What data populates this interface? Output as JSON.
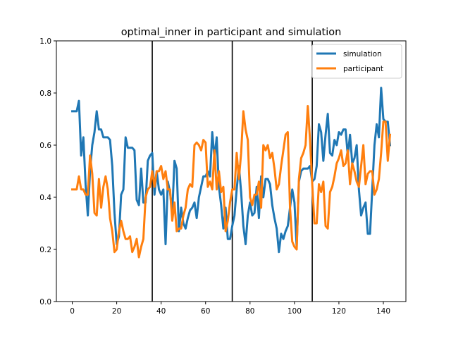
{
  "chart_data": {
    "type": "line",
    "title": "optimal_inner in participant and simulation",
    "xlabel": "",
    "ylabel": "",
    "xlim": [
      -7.15,
      150.15
    ],
    "ylim": [
      0.0,
      1.0
    ],
    "xticks": [
      0,
      20,
      40,
      60,
      80,
      100,
      120,
      140
    ],
    "yticks": [
      0.0,
      0.2,
      0.4,
      0.6,
      0.8,
      1.0
    ],
    "ytick_labels": [
      "0.0",
      "0.2",
      "0.4",
      "0.6",
      "0.8",
      "1.0"
    ],
    "grid": false,
    "legend_position": "top-right",
    "vlines": [
      36,
      72,
      108
    ],
    "vline_color": "#000000",
    "series": [
      {
        "name": "simulation",
        "color": "#1f77b4",
        "values": [
          0.73,
          0.73,
          0.73,
          0.77,
          0.56,
          0.63,
          0.45,
          0.33,
          0.5,
          0.6,
          0.65,
          0.73,
          0.66,
          0.66,
          0.63,
          0.63,
          0.63,
          0.62,
          0.52,
          0.34,
          0.22,
          0.25,
          0.41,
          0.43,
          0.63,
          0.59,
          0.59,
          0.59,
          0.58,
          0.39,
          0.37,
          0.51,
          0.38,
          0.38,
          0.54,
          0.56,
          0.57,
          0.41,
          0.5,
          0.43,
          0.41,
          0.43,
          0.22,
          0.46,
          0.42,
          0.34,
          0.54,
          0.51,
          0.27,
          0.36,
          0.3,
          0.28,
          0.32,
          0.35,
          0.36,
          0.38,
          0.32,
          0.4,
          0.44,
          0.48,
          0.48,
          0.5,
          0.48,
          0.65,
          0.55,
          0.63,
          0.44,
          0.37,
          0.28,
          0.36,
          0.24,
          0.24,
          0.29,
          0.33,
          0.43,
          0.52,
          0.42,
          0.29,
          0.22,
          0.33,
          0.38,
          0.33,
          0.34,
          0.44,
          0.32,
          0.48,
          0.4,
          0.47,
          0.47,
          0.45,
          0.37,
          0.32,
          0.28,
          0.19,
          0.26,
          0.24,
          0.27,
          0.29,
          0.36,
          0.43,
          0.38,
          0.21,
          0.46,
          0.5,
          0.51,
          0.51,
          0.51,
          0.52,
          0.46,
          0.47,
          0.52,
          0.68,
          0.65,
          0.54,
          0.64,
          0.72,
          0.57,
          0.56,
          0.62,
          0.6,
          0.65,
          0.64,
          0.66,
          0.66,
          0.56,
          0.64,
          0.53,
          0.55,
          0.6,
          0.43,
          0.33,
          0.36,
          0.38,
          0.26,
          0.26,
          0.43,
          0.6,
          0.68,
          0.63,
          0.82,
          0.7,
          0.69,
          0.69,
          0.6
        ]
      },
      {
        "name": "participant",
        "color": "#ff7f0e",
        "values": [
          0.43,
          0.43,
          0.43,
          0.48,
          0.43,
          0.43,
          0.41,
          0.41,
          0.56,
          0.49,
          0.34,
          0.33,
          0.47,
          0.36,
          0.44,
          0.48,
          0.43,
          0.32,
          0.27,
          0.19,
          0.2,
          0.27,
          0.31,
          0.27,
          0.24,
          0.24,
          0.25,
          0.19,
          0.21,
          0.24,
          0.17,
          0.21,
          0.24,
          0.4,
          0.43,
          0.44,
          0.5,
          0.44,
          0.5,
          0.5,
          0.52,
          0.47,
          0.5,
          0.43,
          0.43,
          0.31,
          0.38,
          0.27,
          0.28,
          0.28,
          0.33,
          0.36,
          0.43,
          0.45,
          0.44,
          0.6,
          0.61,
          0.6,
          0.58,
          0.62,
          0.61,
          0.44,
          0.46,
          0.43,
          0.58,
          0.43,
          0.5,
          0.42,
          0.44,
          0.27,
          0.31,
          0.38,
          0.43,
          0.43,
          0.57,
          0.47,
          0.57,
          0.73,
          0.66,
          0.62,
          0.4,
          0.37,
          0.41,
          0.41,
          0.46,
          0.36,
          0.6,
          0.58,
          0.6,
          0.55,
          0.57,
          0.51,
          0.43,
          0.45,
          0.52,
          0.58,
          0.64,
          0.65,
          0.36,
          0.23,
          0.21,
          0.2,
          0.47,
          0.55,
          0.57,
          0.6,
          0.75,
          0.62,
          0.45,
          0.3,
          0.3,
          0.45,
          0.42,
          0.46,
          0.29,
          0.28,
          0.42,
          0.44,
          0.48,
          0.53,
          0.55,
          0.58,
          0.52,
          0.53,
          0.58,
          0.45,
          0.53,
          0.5,
          0.46,
          0.44,
          0.52,
          0.6,
          0.45,
          0.49,
          0.5,
          0.5,
          0.41,
          0.43,
          0.47,
          0.57,
          0.69,
          0.69,
          0.54,
          0.64
        ]
      }
    ]
  }
}
